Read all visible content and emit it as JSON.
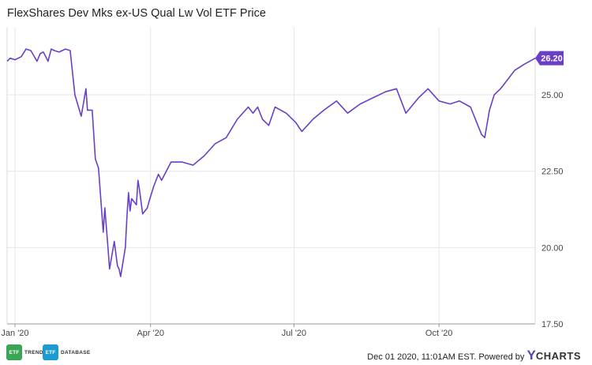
{
  "chart_data": {
    "type": "line",
    "title": "FlexShares Dev Mks ex-US Qual Lw Vol ETF Price",
    "ylim": [
      17.5,
      27.2
    ],
    "xlim": [
      "2020-01-01",
      "2020-12-01"
    ],
    "y_ticks": [
      "17.50",
      "20.00",
      "22.50",
      "25.00"
    ],
    "x_ticks": [
      {
        "label": "Jan '20",
        "date": "2020-01-06"
      },
      {
        "label": "Apr '20",
        "date": "2020-04-01"
      },
      {
        "label": "Jul '20",
        "date": "2020-07-01"
      },
      {
        "label": "Oct '20",
        "date": "2020-10-01"
      }
    ],
    "grid": true,
    "line_color": "#6a3fc8",
    "last_value_label": "26.20",
    "series": [
      {
        "x": [
          "2020-01-01",
          "2020-01-03",
          "2020-01-06",
          "2020-01-08",
          "2020-01-10",
          "2020-01-13",
          "2020-01-16",
          "2020-01-20",
          "2020-01-22",
          "2020-01-24",
          "2020-01-27",
          "2020-01-29",
          "2020-01-31",
          "2020-02-03",
          "2020-02-05",
          "2020-02-07",
          "2020-02-10",
          "2020-02-13",
          "2020-02-17",
          "2020-02-20",
          "2020-02-21",
          "2020-02-24",
          "2020-02-26",
          "2020-02-28",
          "2020-03-02",
          "2020-03-03",
          "2020-03-05",
          "2020-03-06",
          "2020-03-09",
          "2020-03-11",
          "2020-03-12",
          "2020-03-13",
          "2020-03-16",
          "2020-03-17",
          "2020-03-18",
          "2020-03-19",
          "2020-03-20",
          "2020-03-23",
          "2020-03-24",
          "2020-03-25",
          "2020-03-27",
          "2020-03-30",
          "2020-03-31",
          "2020-04-03",
          "2020-04-06",
          "2020-04-08",
          "2020-04-14",
          "2020-04-21",
          "2020-04-28",
          "2020-05-05",
          "2020-05-12",
          "2020-05-19",
          "2020-05-26",
          "2020-06-02",
          "2020-06-05",
          "2020-06-08",
          "2020-06-11",
          "2020-06-15",
          "2020-06-19",
          "2020-06-26",
          "2020-07-02",
          "2020-07-06",
          "2020-07-13",
          "2020-07-20",
          "2020-07-28",
          "2020-08-04",
          "2020-08-12",
          "2020-08-20",
          "2020-08-28",
          "2020-09-04",
          "2020-09-10",
          "2020-09-18",
          "2020-09-24",
          "2020-10-01",
          "2020-10-08",
          "2020-10-14",
          "2020-10-21",
          "2020-10-28",
          "2020-10-30",
          "2020-11-02",
          "2020-11-05",
          "2020-11-09",
          "2020-11-12",
          "2020-11-18",
          "2020-11-24",
          "2020-12-01"
        ],
        "values": [
          26.1,
          26.2,
          26.15,
          26.2,
          26.25,
          26.5,
          26.45,
          26.1,
          26.35,
          26.4,
          26.1,
          26.5,
          26.45,
          26.4,
          26.45,
          26.5,
          26.45,
          25.0,
          24.3,
          25.2,
          24.5,
          24.5,
          22.9,
          22.6,
          20.5,
          21.3,
          20.0,
          19.3,
          20.2,
          19.4,
          19.3,
          19.05,
          20.0,
          21.0,
          21.8,
          21.2,
          21.6,
          21.4,
          22.2,
          21.9,
          21.1,
          21.3,
          21.5,
          22.0,
          22.4,
          22.2,
          22.8,
          22.8,
          22.7,
          23.0,
          23.4,
          23.6,
          24.2,
          24.6,
          24.4,
          24.6,
          24.2,
          24.0,
          24.6,
          24.4,
          24.1,
          23.8,
          24.2,
          24.5,
          24.8,
          24.4,
          24.7,
          24.9,
          25.1,
          25.2,
          24.4,
          24.9,
          25.2,
          24.8,
          24.7,
          24.8,
          24.6,
          23.7,
          23.6,
          24.5,
          25.0,
          25.2,
          25.4,
          25.8,
          26.0,
          26.2
        ]
      }
    ]
  },
  "footer": {
    "logo1_mark": "ETF",
    "logo1_text": "TRENDS",
    "logo2_mark": "ETF",
    "logo2_text": "DATABASE",
    "timestamp": "Dec 01 2020, 11:01AM EST.",
    "powered": "Powered by",
    "brand_y": "Y",
    "brand_rest": "CHARTS",
    "logo1_color": "#3aa655",
    "logo2_color": "#1c9bd0"
  }
}
